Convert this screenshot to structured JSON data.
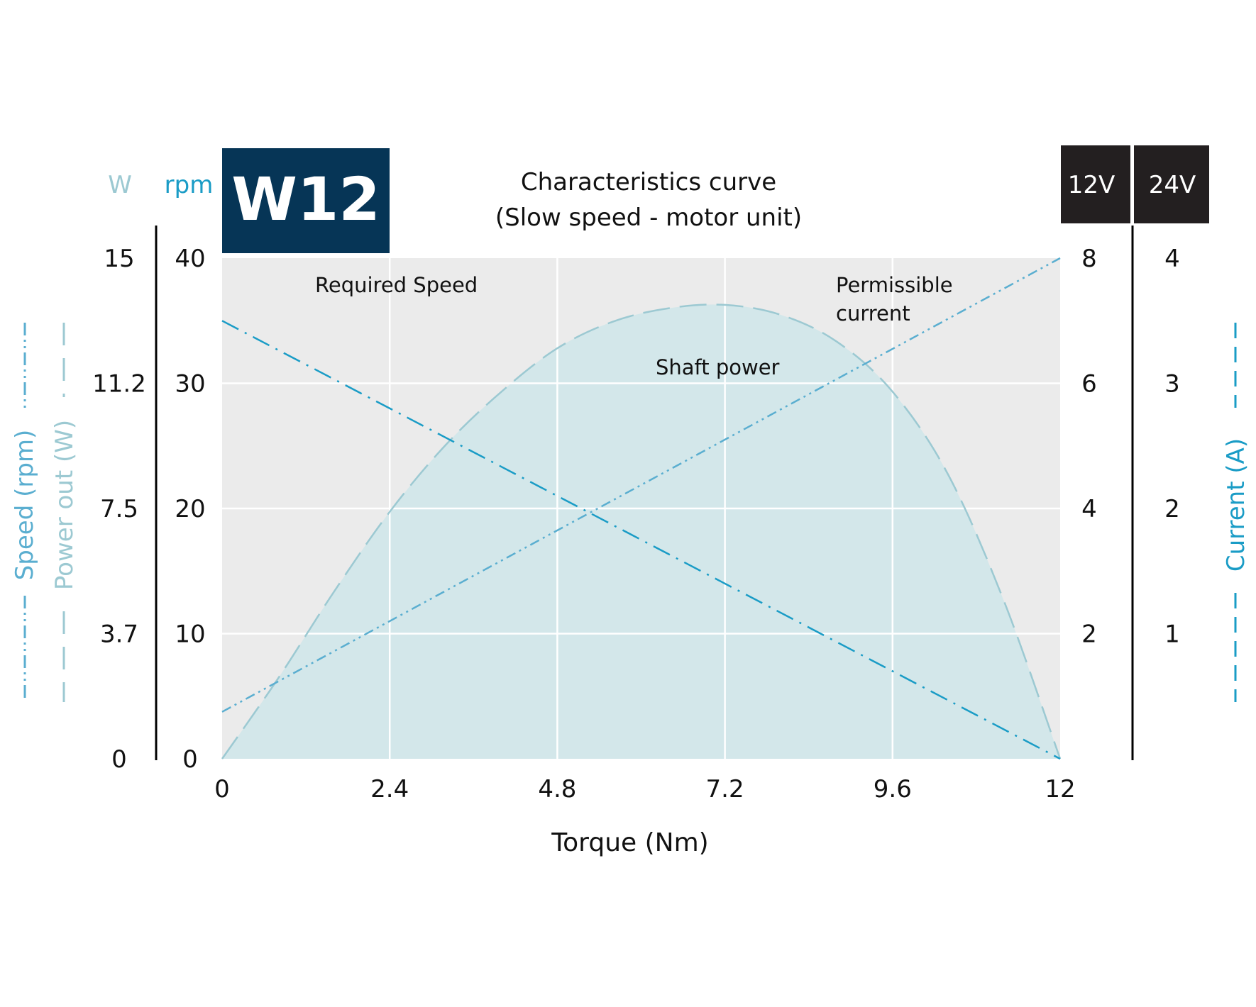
{
  "chart_data": {
    "type": "line",
    "model_badge": "W12",
    "title_line1": "Characteristics curve",
    "title_line2": "(Slow speed - motor unit)",
    "xlabel": "Torque (Nm)",
    "xlim": [
      0,
      12
    ],
    "x_ticks": [
      "0",
      "2.4",
      "4.8",
      "7.2",
      "9.6",
      "12"
    ],
    "left_axes": {
      "power_unit": "W",
      "speed_unit": "rpm",
      "power_ticks": [
        "0",
        "3.7",
        "7.5",
        "11.2",
        "15"
      ],
      "speed_ticks": [
        "0",
        "10",
        "20",
        "30",
        "40"
      ],
      "speed_ylim": [
        0,
        40
      ],
      "power_ylim": [
        0,
        15
      ]
    },
    "right_axes": {
      "voltage_12": "12V",
      "voltage_24": "24V",
      "current_12v_ticks": [
        "2",
        "4",
        "6",
        "8"
      ],
      "current_24v_ticks": [
        "1",
        "2",
        "3",
        "4"
      ],
      "current_12v_ylim": [
        0,
        8
      ]
    },
    "axis_titles": {
      "speed": "Speed (rpm)",
      "power": "Power out (W)",
      "current": "Current (A)"
    },
    "annotations": {
      "required_speed": "Required Speed",
      "permissible_line1": "Permissible",
      "permissible_line2": "current",
      "shaft_power": "Shaft power"
    },
    "grid": true,
    "colors": {
      "speed": "#1a9cc6",
      "current": "#5aaed0",
      "power_fill": "#d3e7ea",
      "power_stroke": "#9cc9d2",
      "plot_bg": "#ebebeb",
      "badge_bg": "#063556",
      "voltage_bg": "#231f20"
    },
    "series": [
      {
        "name": "Required Speed",
        "axis": "speed",
        "x": [
          0,
          12
        ],
        "y": [
          35,
          0
        ]
      },
      {
        "name": "Permissible current",
        "axis": "current_12v",
        "x": [
          0,
          12
        ],
        "y": [
          0.75,
          8
        ]
      },
      {
        "name": "Shaft power",
        "axis": "power",
        "x": [
          0,
          0.8,
          1.6,
          2.4,
          3.2,
          4.0,
          4.8,
          5.6,
          6.4,
          7.2,
          8.0,
          8.8,
          9.6,
          10.4,
          11.2,
          12.0
        ],
        "y": [
          0,
          2.4,
          5.0,
          7.4,
          9.4,
          11.0,
          12.3,
          13.1,
          13.5,
          13.6,
          13.3,
          12.5,
          11.0,
          8.5,
          4.7,
          0
        ]
      }
    ]
  }
}
